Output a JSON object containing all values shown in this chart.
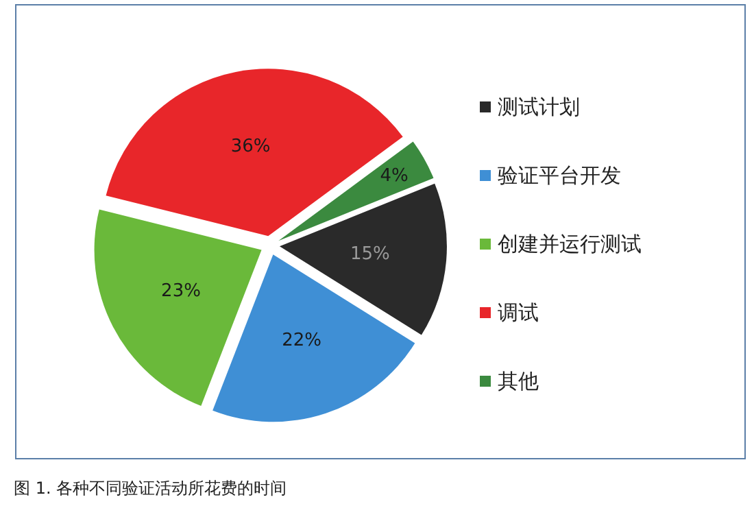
{
  "chart_data": {
    "type": "pie",
    "categories": [
      "测试计划",
      "验证平台开发",
      "创建并运行测试",
      "调试",
      "其他"
    ],
    "values": [
      15,
      22,
      23,
      36,
      4
    ],
    "colors": [
      "#2a2a2a",
      "#3f8fd5",
      "#6ab93a",
      "#e8262a",
      "#3b8a3f"
    ],
    "value_labels": [
      "15%",
      "22%",
      "23%",
      "36%",
      "4%"
    ],
    "legend": "right",
    "annotations": [
      "图 1. 各种不同验证活动所花费的时间"
    ]
  }
}
